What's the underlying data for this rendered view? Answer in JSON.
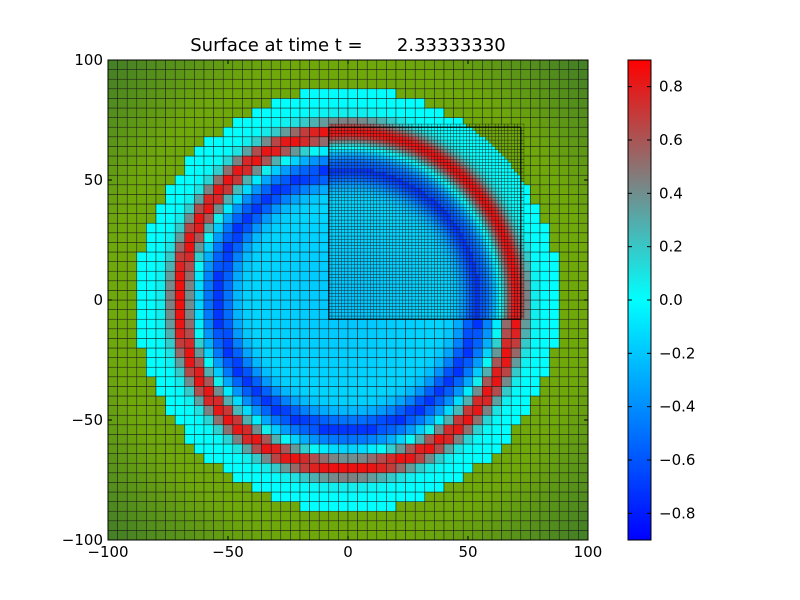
{
  "chart_data": {
    "type": "heatmap",
    "title": "Surface at time t =      2.33333330",
    "xlabel": "",
    "ylabel": "",
    "xlim": [
      -100,
      100
    ],
    "ylim": [
      -100,
      100
    ],
    "xticks": [
      -100,
      -50,
      0,
      50,
      100
    ],
    "xtick_labels": [
      "−100",
      "−50",
      "0",
      "50",
      "100"
    ],
    "yticks": [
      -100,
      -50,
      0,
      50,
      100
    ],
    "ytick_labels": [
      "−100",
      "−50",
      "0",
      "50",
      "100"
    ],
    "grid": true,
    "coarse_cell_size": 4,
    "refined_patch": {
      "xlim": [
        -8,
        72
      ],
      "ylim": [
        -8,
        72
      ],
      "cell_size": 1.333
    },
    "field": {
      "ring_outer": {
        "radius": 70,
        "width": 5,
        "value": 0.85
      },
      "ring_inner": {
        "radius": 55,
        "width": 7,
        "value": -0.6
      },
      "ocean_radius": 88,
      "ocean_value": 0.0,
      "ocean_inner_value": -0.15,
      "land_color": "#6fa80a",
      "land_dark_color": "#3e7a2a"
    },
    "colorbar": {
      "vmin": -0.9,
      "vmax": 0.9,
      "ticks": [
        0.8,
        0.6,
        0.4,
        0.2,
        0.0,
        -0.2,
        -0.4,
        -0.6,
        -0.8
      ],
      "tick_labels": [
        "0.8",
        "0.6",
        "0.4",
        "0.2",
        "0.0",
        "−0.2",
        "−0.4",
        "−0.6",
        "−0.8"
      ],
      "colors": [
        "#0000ff",
        "#00ffff",
        "#ff0000"
      ]
    }
  }
}
